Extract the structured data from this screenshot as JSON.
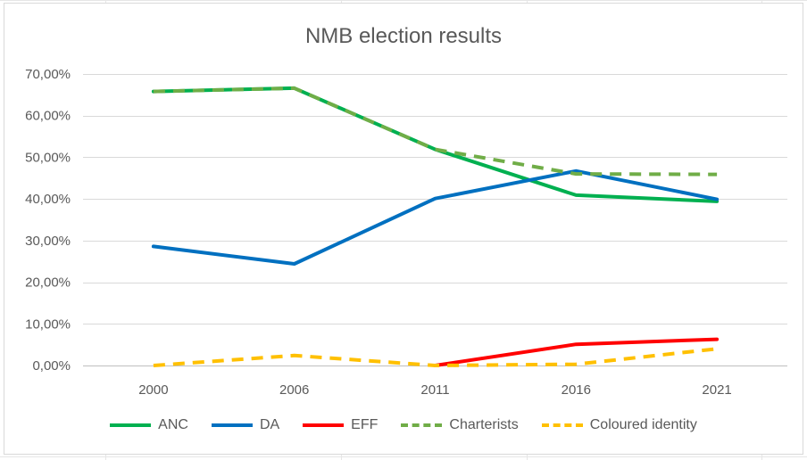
{
  "chart_data": {
    "type": "line",
    "title": "NMB election results",
    "xlabel": "",
    "ylabel": "",
    "categories": [
      "2000",
      "2006",
      "2011",
      "2016",
      "2021"
    ],
    "ylim": [
      0,
      70
    ],
    "yticks": [
      0,
      10,
      20,
      30,
      40,
      50,
      60,
      70
    ],
    "ytick_labels": [
      "0,00%",
      "10,00%",
      "20,00%",
      "30,00%",
      "40,00%",
      "50,00%",
      "60,00%",
      "70,00%"
    ],
    "grid": true,
    "legend_position": "bottom",
    "series": [
      {
        "name": "ANC",
        "values": [
          65.8,
          66.6,
          51.9,
          40.9,
          39.4
        ],
        "color": "#00b050",
        "dashed": false
      },
      {
        "name": "DA",
        "values": [
          28.6,
          24.4,
          40.1,
          46.7,
          39.9
        ],
        "color": "#0070c0",
        "dashed": false
      },
      {
        "name": "EFF",
        "values": [
          null,
          null,
          0,
          5.1,
          6.3
        ],
        "color": "#ff0000",
        "dashed": false
      },
      {
        "name": "Charterists",
        "values": [
          65.8,
          66.6,
          51.9,
          46.0,
          45.9
        ],
        "color": "#70ad47",
        "dashed": true
      },
      {
        "name": "Coloured identity",
        "values": [
          0,
          2.4,
          0,
          0.3,
          4.0
        ],
        "color": "#ffc000",
        "dashed": true
      }
    ]
  }
}
